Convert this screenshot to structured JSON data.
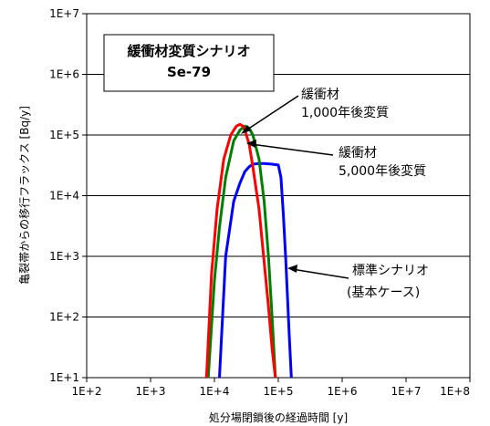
{
  "chart_data": {
    "type": "line",
    "title": "緩衝材変質シナリオ",
    "subtitle": "Se-79",
    "xlabel": "処分場閉鎖後の経過時間 [y]",
    "ylabel": "亀裂帯からの移行フラックス [Bq/y]",
    "x_scale": "log",
    "y_scale": "log",
    "xlim": [
      100,
      100000000
    ],
    "ylim": [
      10,
      10000000
    ],
    "x_ticks": [
      "1E+2",
      "1E+3",
      "1E+4",
      "1E+5",
      "1E+6",
      "1E+7",
      "1E+8"
    ],
    "y_ticks": [
      "1E+1",
      "1E+2",
      "1E+3",
      "1E+4",
      "1E+5",
      "1E+6",
      "1E+7"
    ],
    "grid": "horizontal",
    "series": [
      {
        "color": "#0000ff",
        "x": [
          12000,
          15000,
          20000,
          25000,
          30000,
          35000,
          40000,
          50000,
          60000,
          70000,
          80000,
          90000,
          100000,
          110000,
          120000,
          130000,
          150000,
          160000
        ],
        "y": [
          10,
          1000,
          8000,
          16000,
          25000,
          30000,
          33000,
          34000,
          34000,
          33500,
          33000,
          32500,
          32000,
          20000,
          5000,
          1000,
          40,
          10
        ]
      },
      {
        "color": "#008000",
        "x": [
          8000,
          10000,
          12000,
          15000,
          20000,
          25000,
          30000,
          35000,
          40000,
          50000,
          60000,
          70000,
          80000,
          90000
        ],
        "y": [
          10,
          400,
          3000,
          20000,
          80000,
          120000,
          140000,
          130000,
          100000,
          40000,
          8000,
          1000,
          100,
          10
        ]
      },
      {
        "color": "#ff0000",
        "x": [
          7500,
          9000,
          11000,
          14000,
          18000,
          22000,
          25000,
          28000,
          30000,
          35000,
          40000,
          50000,
          60000,
          70000,
          80000,
          90000
        ],
        "y": [
          10,
          500,
          6000,
          40000,
          100000,
          140000,
          150000,
          140000,
          120000,
          70000,
          30000,
          6000,
          800,
          150,
          30,
          10
        ]
      }
    ],
    "annotations": [
      {
        "lines": [
          "緩衝材",
          "1,000年後変質"
        ],
        "target_series": 2,
        "target_x": 30000,
        "target_y": 145000
      },
      {
        "lines": [
          "緩衝材",
          "5,000年後変質"
        ],
        "target_series": 1,
        "target_x": 36000,
        "target_y": 100000
      },
      {
        "lines": [
          "標準シナリオ",
          "(基本ケース)"
        ],
        "target_series": 0,
        "target_x": 125000,
        "target_y": 1000
      }
    ]
  }
}
